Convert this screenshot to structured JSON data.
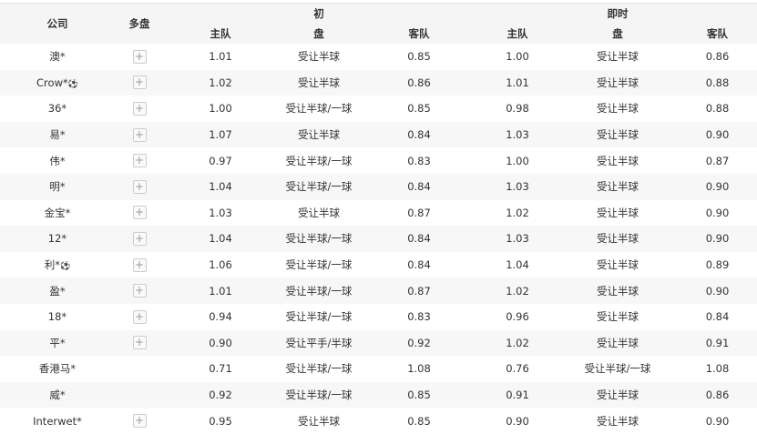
{
  "header": {
    "company": "公司",
    "multi": "多盘",
    "initial": "初",
    "live": "即时",
    "home": "主队",
    "line": "盘",
    "away": "客队"
  },
  "rows": [
    {
      "company": "澳*",
      "ball": false,
      "plus": true,
      "ih": "1.01",
      "il": "受让半球",
      "ia": "0.85",
      "lh": "1.00",
      "ll": "受让半球",
      "la": "0.86"
    },
    {
      "company": "Crow*",
      "ball": true,
      "plus": true,
      "ih": "1.02",
      "il": "受让半球",
      "ia": "0.86",
      "lh": "1.01",
      "ll": "受让半球",
      "la": "0.88"
    },
    {
      "company": "36*",
      "ball": false,
      "plus": true,
      "ih": "1.00",
      "il": "受让半球/一球",
      "ia": "0.85",
      "lh": "0.98",
      "ll": "受让半球",
      "la": "0.88"
    },
    {
      "company": "易*",
      "ball": false,
      "plus": true,
      "ih": "1.07",
      "il": "受让半球",
      "ia": "0.84",
      "lh": "1.03",
      "ll": "受让半球",
      "la": "0.90"
    },
    {
      "company": "伟*",
      "ball": false,
      "plus": true,
      "ih": "0.97",
      "il": "受让半球/一球",
      "ia": "0.83",
      "lh": "1.00",
      "ll": "受让半球",
      "la": "0.87"
    },
    {
      "company": "明*",
      "ball": false,
      "plus": true,
      "ih": "1.04",
      "il": "受让半球/一球",
      "ia": "0.84",
      "lh": "1.03",
      "ll": "受让半球",
      "la": "0.90"
    },
    {
      "company": "金宝*",
      "ball": false,
      "plus": true,
      "ih": "1.03",
      "il": "受让半球",
      "ia": "0.87",
      "lh": "1.02",
      "ll": "受让半球",
      "la": "0.90"
    },
    {
      "company": "12*",
      "ball": false,
      "plus": true,
      "ih": "1.04",
      "il": "受让半球/一球",
      "ia": "0.84",
      "lh": "1.03",
      "ll": "受让半球",
      "la": "0.90"
    },
    {
      "company": "利*",
      "ball": true,
      "plus": true,
      "ih": "1.06",
      "il": "受让半球/一球",
      "ia": "0.84",
      "lh": "1.04",
      "ll": "受让半球",
      "la": "0.89"
    },
    {
      "company": "盈*",
      "ball": false,
      "plus": true,
      "ih": "1.01",
      "il": "受让半球/一球",
      "ia": "0.87",
      "lh": "1.02",
      "ll": "受让半球",
      "la": "0.90"
    },
    {
      "company": "18*",
      "ball": false,
      "plus": true,
      "ih": "0.94",
      "il": "受让半球/一球",
      "ia": "0.83",
      "lh": "0.96",
      "ll": "受让半球",
      "la": "0.84"
    },
    {
      "company": "平*",
      "ball": false,
      "plus": true,
      "ih": "0.90",
      "il": "受让平手/半球",
      "ia": "0.92",
      "lh": "1.02",
      "ll": "受让半球",
      "la": "0.91"
    },
    {
      "company": "香港马*",
      "ball": false,
      "plus": false,
      "ih": "0.71",
      "il": "受让半球/一球",
      "ia": "1.08",
      "lh": "0.76",
      "ll": "受让半球/一球",
      "la": "1.08"
    },
    {
      "company": "威*",
      "ball": false,
      "plus": false,
      "ih": "0.92",
      "il": "受让半球/一球",
      "ia": "0.85",
      "lh": "0.91",
      "ll": "受让半球",
      "la": "0.86"
    },
    {
      "company": "Interwet*",
      "ball": false,
      "plus": true,
      "ih": "0.95",
      "il": "受让半球",
      "ia": "0.85",
      "lh": "0.90",
      "ll": "受让半球",
      "la": "0.90"
    }
  ]
}
